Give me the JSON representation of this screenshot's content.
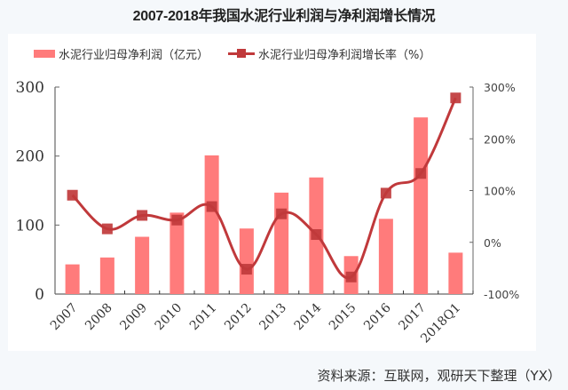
{
  "title": "2007-2018年我国水泥行业利润与净利润增长情况",
  "legend": {
    "bar_label": "水泥行业归母净利润（亿元）",
    "line_label": "水泥行业归母净利润增长率（%）"
  },
  "footer": "资料来源：互联网，观研天下整理（YX）",
  "colors": {
    "bar": "#ff7b7b",
    "line": "#c0393b",
    "axis": "#666666",
    "text": "#333333"
  },
  "chart_data": {
    "type": "bar+line",
    "title": "2007-2018年我国水泥行业利润与净利润增长情况",
    "categories": [
      "2007",
      "2008",
      "2009",
      "2010",
      "2011",
      "2012",
      "2013",
      "2014",
      "2015",
      "2016",
      "2017",
      "2018Q1"
    ],
    "series": [
      {
        "name": "水泥行业归母净利润（亿元）",
        "type": "bar",
        "axis": "left",
        "values": [
          43,
          53,
          83,
          118,
          201,
          95,
          147,
          169,
          55,
          109,
          256,
          60
        ]
      },
      {
        "name": "水泥行业归母净利润增长率（%）",
        "type": "line",
        "axis": "right",
        "values": [
          91,
          26,
          52,
          43,
          69,
          -52,
          55,
          15,
          -67,
          95,
          133,
          279
        ]
      }
    ],
    "left_axis": {
      "ylim": [
        0,
        300
      ],
      "ticks": [
        "0",
        "100",
        "200",
        "300"
      ]
    },
    "right_axis": {
      "ylim": [
        -100,
        300
      ],
      "ticks": [
        "-100%",
        "0%",
        "100%",
        "200%",
        "300%"
      ]
    },
    "xlabel": "",
    "ylabel": "",
    "grid": false,
    "legend_position": "top"
  }
}
